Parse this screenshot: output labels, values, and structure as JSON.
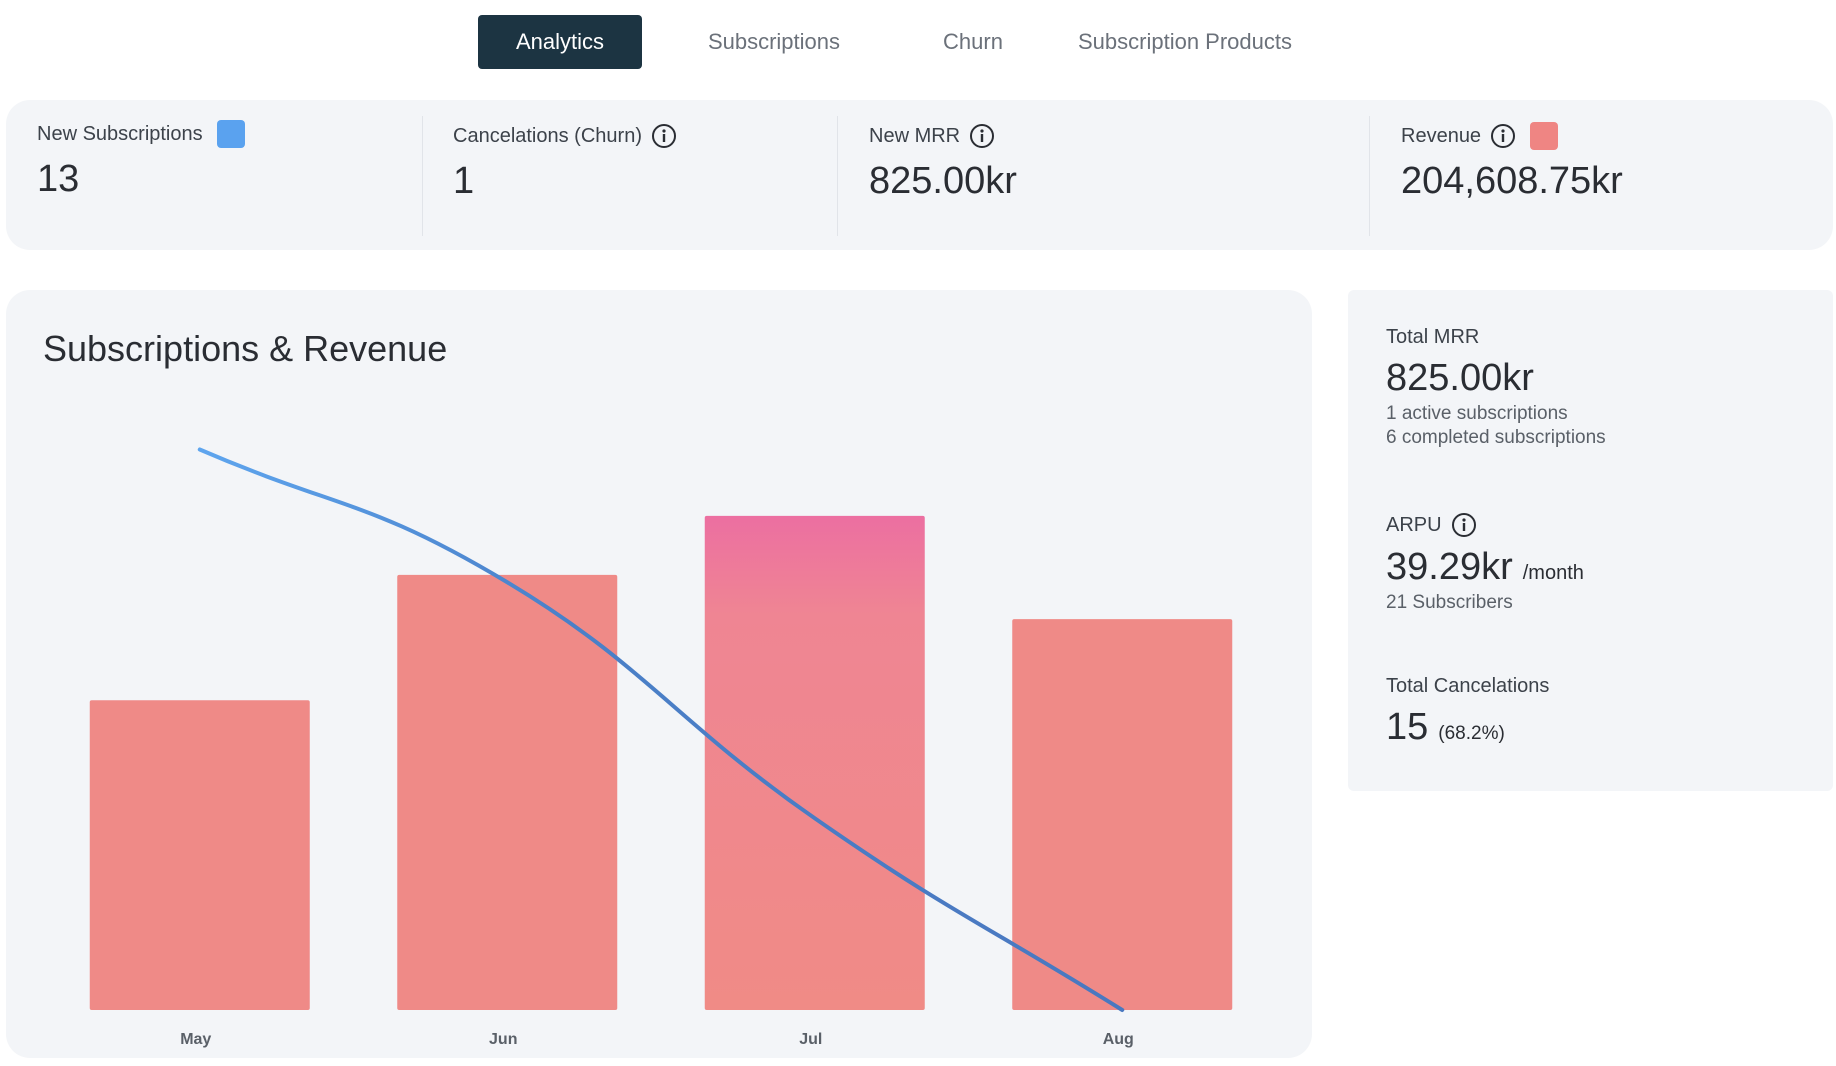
{
  "tabs": [
    {
      "label": "Analytics",
      "active": true
    },
    {
      "label": "Subscriptions",
      "active": false
    },
    {
      "label": "Churn",
      "active": false
    },
    {
      "label": "Subscription Products",
      "active": false
    }
  ],
  "stats": {
    "new_subscriptions": {
      "label": "New Subscriptions",
      "value": "13",
      "swatch_color": "#5aa2ef"
    },
    "cancelations": {
      "label": "Cancelations (Churn)",
      "value": "1"
    },
    "new_mrr": {
      "label": "New MRR",
      "value": "825.00kr"
    },
    "revenue": {
      "label": "Revenue",
      "value": "204,608.75kr",
      "swatch_color": "#ef8583"
    }
  },
  "chart_title": "Subscriptions & Revenue",
  "chart_data": {
    "type": "bar",
    "title": "Subscriptions & Revenue",
    "categories": [
      "May",
      "Jun",
      "Jul",
      "Aug"
    ],
    "series": [
      {
        "name": "Revenue",
        "type": "bar",
        "color": "#ef8a87",
        "values": [
          42,
          59,
          67,
          53
        ]
      },
      {
        "name": "New Subscriptions",
        "type": "line",
        "color": "#4a80c8",
        "values": [
          76,
          58,
          26,
          0
        ]
      }
    ],
    "ylim": [
      0,
      80
    ],
    "grid": false,
    "xlabel": "",
    "ylabel": ""
  },
  "side": {
    "total_mrr": {
      "label": "Total MRR",
      "value": "825.00kr",
      "line1": "1 active subscriptions",
      "line2": "6 completed subscriptions"
    },
    "arpu": {
      "label": "ARPU",
      "value": "39.29kr",
      "unit": "/month",
      "sub": "21 Subscribers"
    },
    "total_cancelations": {
      "label": "Total Cancelations",
      "value": "15",
      "pct": "(68.2%)"
    }
  },
  "icons": {
    "info": "info-circle-icon"
  }
}
